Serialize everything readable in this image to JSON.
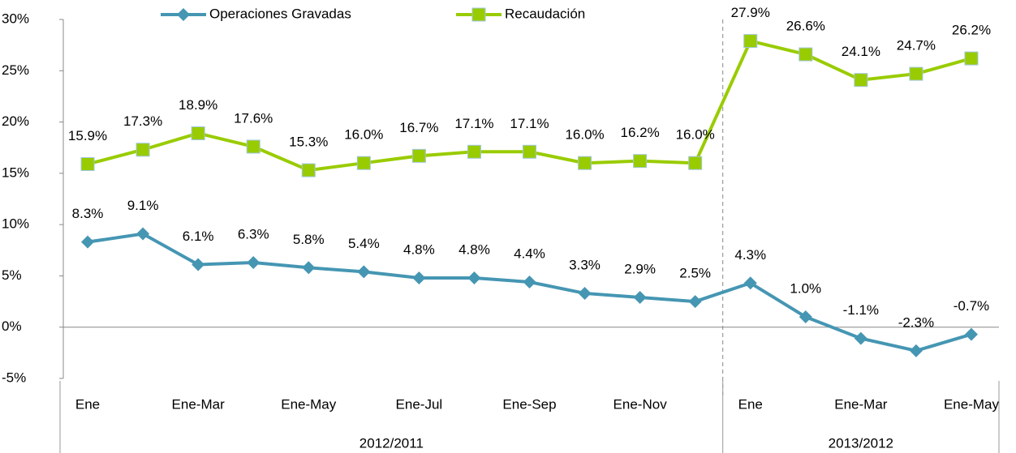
{
  "chart_data": {
    "type": "line",
    "categories": [
      "Ene",
      null,
      "Ene-Mar",
      null,
      "Ene-May",
      null,
      "Ene-Jul",
      null,
      "Ene-Sep",
      null,
      "Ene-Nov",
      null,
      "Ene",
      null,
      "Ene-Mar",
      null,
      "Ene-May"
    ],
    "groups": [
      "2012/2011",
      "2013/2012"
    ],
    "series": [
      {
        "name": "Operaciones Gravadas",
        "color": "#4596b3",
        "marker": "diamond",
        "values": [
          8.3,
          9.1,
          6.1,
          6.3,
          5.8,
          5.4,
          4.8,
          4.8,
          4.4,
          3.3,
          2.9,
          2.5,
          4.3,
          1.0,
          -1.1,
          -2.3,
          -0.7
        ],
        "value_labels": [
          "8.3%",
          "9.1%",
          "6.1%",
          "6.3%",
          "5.8%",
          "5.4%",
          "4.8%",
          "4.8%",
          "4.4%",
          "3.3%",
          "2.9%",
          "2.5%",
          "4.3%",
          "1.0%",
          "-1.1%",
          "-2.3%",
          "-0.7%"
        ]
      },
      {
        "name": "Recaudación",
        "color": "#99cc00",
        "marker": "square",
        "values": [
          15.9,
          17.3,
          18.9,
          17.6,
          15.3,
          16.0,
          16.7,
          17.1,
          17.1,
          16.0,
          16.2,
          16.0,
          27.9,
          26.6,
          24.1,
          24.7,
          26.2
        ],
        "value_labels": [
          "15.9%",
          "17.3%",
          "18.9%",
          "17.6%",
          "15.3%",
          "16.0%",
          "16.7%",
          "17.1%",
          "17.1%",
          "16.0%",
          "16.2%",
          "16.0%",
          "27.9%",
          "26.6%",
          "24.1%",
          "24.7%",
          "26.2%"
        ]
      }
    ],
    "ylim": [
      -5,
      30
    ],
    "yticks": [
      {
        "value": -5,
        "label": "-5%"
      },
      {
        "value": 0,
        "label": "0%"
      },
      {
        "value": 5,
        "label": "5%"
      },
      {
        "value": 10,
        "label": "10%"
      },
      {
        "value": 15,
        "label": "15%"
      },
      {
        "value": 20,
        "label": "20%"
      },
      {
        "value": 25,
        "label": "25%"
      },
      {
        "value": 30,
        "label": "30%"
      }
    ],
    "legend": "top"
  }
}
